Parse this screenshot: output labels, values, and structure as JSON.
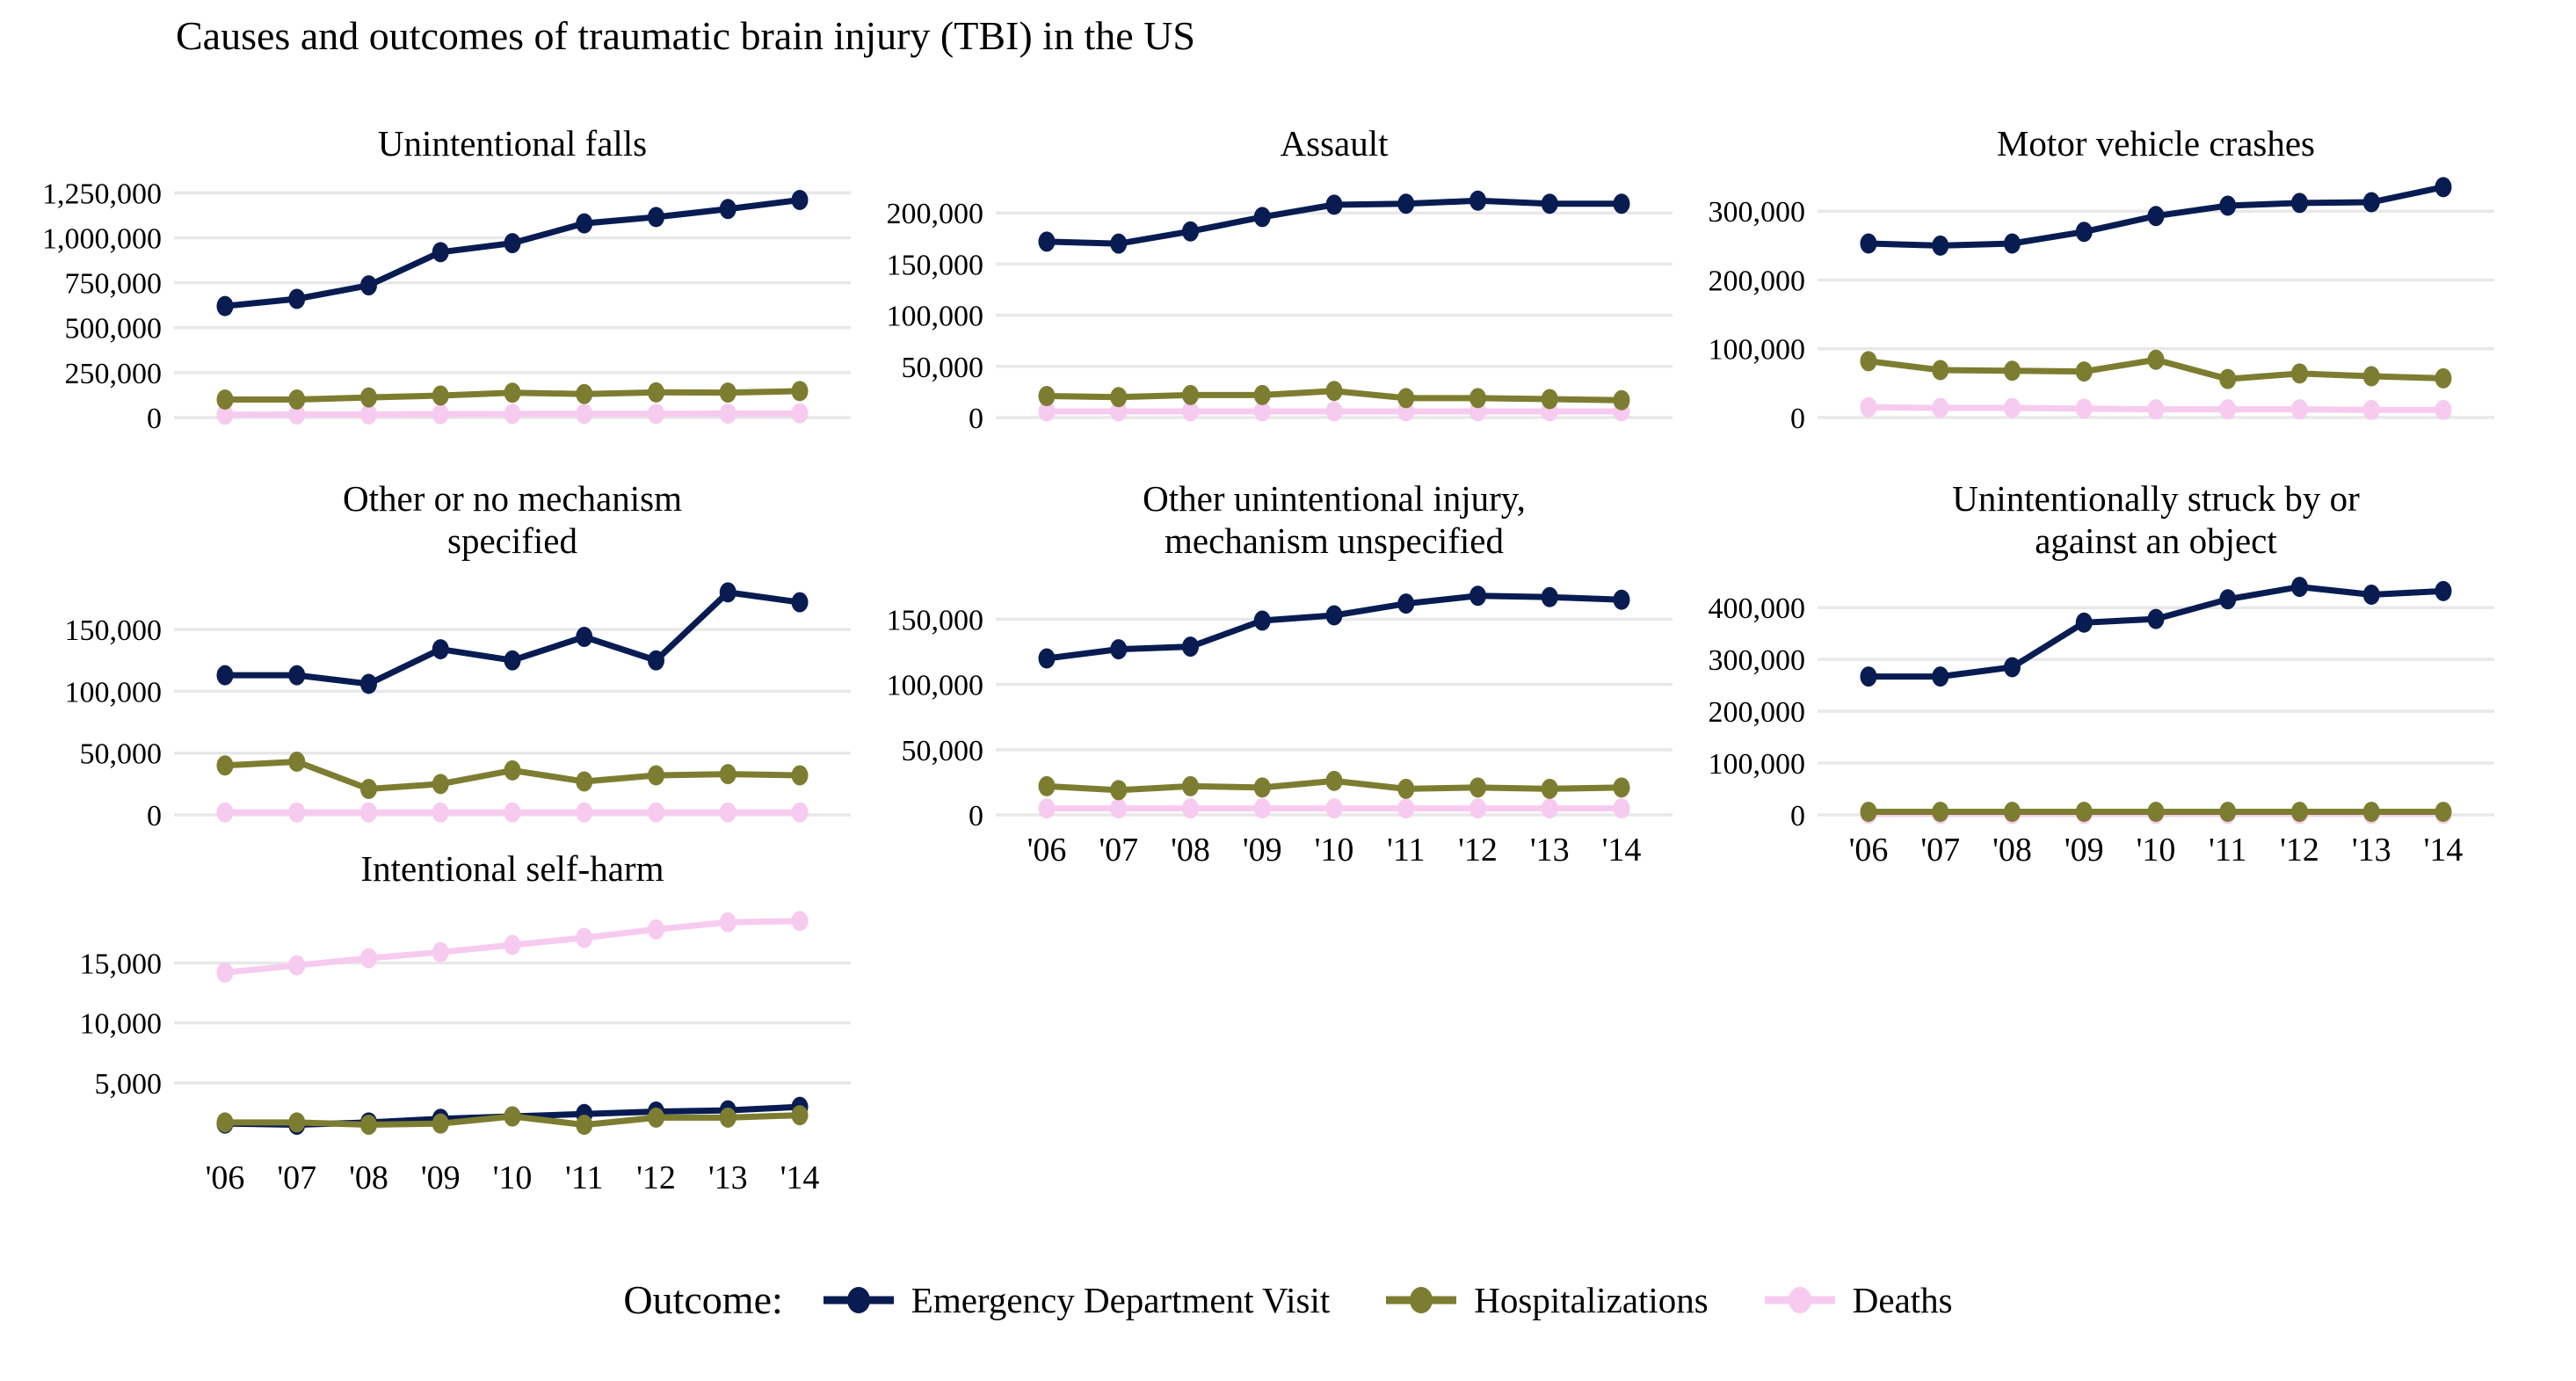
{
  "title": "Causes and outcomes of traumatic brain injury (TBI) in the US",
  "legend": {
    "label": "Outcome:",
    "series": [
      {
        "name": "Emergency Department Visit",
        "color": "#081c52"
      },
      {
        "name": "Hospitalizations",
        "color": "#7d7d31"
      },
      {
        "name": "Deaths",
        "color": "#f7cbf0"
      }
    ]
  },
  "colors": {
    "gridline": "#e8e8e8",
    "background": "#ffffff",
    "text": "#000000"
  },
  "categories": [
    "'06",
    "'07",
    "'08",
    "'09",
    "'10",
    "'11",
    "'12",
    "'13",
    "'14"
  ],
  "chart_data": [
    {
      "type": "line",
      "title": "Unintentional falls",
      "title_lines": [
        "Unintentional falls"
      ],
      "categories": [
        "'06",
        "'07",
        "'08",
        "'09",
        "'10",
        "'11",
        "'12",
        "'13",
        "'14"
      ],
      "ytick_values": [
        0,
        250000,
        500000,
        750000,
        1000000,
        1250000
      ],
      "ytick_labels": [
        "0",
        "250,000",
        "500,000",
        "750,000",
        "1,000,000",
        "1,250,000"
      ],
      "ylim": [
        0,
        1320000
      ],
      "grid": true,
      "show_x_labels": false,
      "series": [
        {
          "name": "Emergency Department Visit",
          "values": [
            620000,
            660000,
            735000,
            920000,
            970000,
            1080000,
            1115000,
            1160000,
            1210000
          ]
        },
        {
          "name": "Hospitalizations",
          "values": [
            100000,
            100000,
            112000,
            122000,
            138000,
            131000,
            140000,
            139000,
            147000
          ]
        },
        {
          "name": "Deaths",
          "values": [
            16000,
            17000,
            18000,
            19000,
            20000,
            21000,
            21000,
            22000,
            23000
          ]
        }
      ]
    },
    {
      "type": "line",
      "title": "Assault",
      "title_lines": [
        "Assault"
      ],
      "categories": [
        "'06",
        "'07",
        "'08",
        "'09",
        "'10",
        "'11",
        "'12",
        "'13",
        "'14"
      ],
      "ytick_values": [
        0,
        50000,
        100000,
        150000,
        200000
      ],
      "ytick_labels": [
        "0",
        "50,000",
        "100,000",
        "150,000",
        "200,000"
      ],
      "ylim": [
        0,
        232000
      ],
      "grid": true,
      "show_x_labels": false,
      "series": [
        {
          "name": "Emergency Department Visit",
          "values": [
            172000,
            170000,
            182000,
            196000,
            208000,
            209000,
            212000,
            209000,
            209000
          ]
        },
        {
          "name": "Hospitalizations",
          "values": [
            21000,
            20000,
            22000,
            22000,
            26000,
            19000,
            19000,
            18000,
            17000
          ]
        },
        {
          "name": "Deaths",
          "values": [
            6000,
            6000,
            6000,
            6000,
            6000,
            6000,
            6000,
            6000,
            6000
          ]
        }
      ]
    },
    {
      "type": "line",
      "title": "Motor vehicle crashes",
      "title_lines": [
        "Motor vehicle crashes"
      ],
      "categories": [
        "'06",
        "'07",
        "'08",
        "'09",
        "'10",
        "'11",
        "'12",
        "'13",
        "'14"
      ],
      "ytick_values": [
        0,
        100000,
        200000,
        300000
      ],
      "ytick_labels": [
        "0",
        "100,000",
        "200,000",
        "300,000"
      ],
      "ylim": [
        0,
        345000
      ],
      "grid": true,
      "show_x_labels": false,
      "series": [
        {
          "name": "Emergency Department Visit",
          "values": [
            253000,
            250000,
            253000,
            270000,
            293000,
            308000,
            312000,
            313000,
            335000
          ]
        },
        {
          "name": "Hospitalizations",
          "values": [
            82000,
            69000,
            68000,
            67000,
            84000,
            56000,
            64000,
            60000,
            57000
          ]
        },
        {
          "name": "Deaths",
          "values": [
            15000,
            14000,
            14000,
            13000,
            12000,
            12000,
            12000,
            11000,
            11000
          ]
        }
      ]
    },
    {
      "type": "line",
      "title": "Other or no mechanism specified",
      "title_lines": [
        "Other or no mechanism",
        "specified"
      ],
      "categories": [
        "'06",
        "'07",
        "'08",
        "'09",
        "'10",
        "'11",
        "'12",
        "'13",
        "'14"
      ],
      "ytick_values": [
        0,
        50000,
        100000,
        150000
      ],
      "ytick_labels": [
        "0",
        "50,000",
        "100,000",
        "150,000"
      ],
      "ylim": [
        0,
        192000
      ],
      "grid": true,
      "show_x_labels": false,
      "series": [
        {
          "name": "Emergency Department Visit",
          "values": [
            113000,
            113000,
            106000,
            134000,
            125000,
            144000,
            125000,
            180000,
            172000
          ]
        },
        {
          "name": "Hospitalizations",
          "values": [
            40000,
            43000,
            21000,
            25000,
            36000,
            27000,
            32000,
            33000,
            32000
          ]
        },
        {
          "name": "Deaths",
          "values": [
            2000,
            2000,
            2000,
            2000,
            2000,
            2000,
            2000,
            2000,
            2000
          ]
        }
      ]
    },
    {
      "type": "line",
      "title": "Other unintentional injury, mechanism unspecified",
      "title_lines": [
        "Other unintentional injury,",
        "mechanism unspecified"
      ],
      "categories": [
        "'06",
        "'07",
        "'08",
        "'09",
        "'10",
        "'11",
        "'12",
        "'13",
        "'14"
      ],
      "ytick_values": [
        0,
        50000,
        100000,
        150000
      ],
      "ytick_labels": [
        "0",
        "50,000",
        "100,000",
        "150,000"
      ],
      "ylim": [
        0,
        182000
      ],
      "grid": true,
      "show_x_labels": true,
      "series": [
        {
          "name": "Emergency Department Visit",
          "values": [
            120000,
            127000,
            129000,
            149000,
            153000,
            162000,
            168000,
            167000,
            165000
          ]
        },
        {
          "name": "Hospitalizations",
          "values": [
            22000,
            19000,
            22000,
            21000,
            26000,
            20000,
            21000,
            20000,
            21000
          ]
        },
        {
          "name": "Deaths",
          "values": [
            5000,
            5000,
            5000,
            5000,
            5000,
            5000,
            5000,
            5000,
            5000
          ]
        }
      ]
    },
    {
      "type": "line",
      "title": "Unintentionally struck by or against an object",
      "title_lines": [
        "Unintentionally struck by or",
        "against an object"
      ],
      "categories": [
        "'06",
        "'07",
        "'08",
        "'09",
        "'10",
        "'11",
        "'12",
        "'13",
        "'14"
      ],
      "ytick_values": [
        0,
        100000,
        200000,
        300000,
        400000
      ],
      "ytick_labels": [
        "0",
        "100,000",
        "200,000",
        "300,000",
        "400,000"
      ],
      "ylim": [
        0,
        458000
      ],
      "grid": true,
      "show_x_labels": true,
      "series": [
        {
          "name": "Emergency Department Visit",
          "values": [
            267000,
            267000,
            285000,
            371000,
            378000,
            416000,
            440000,
            425000,
            432000
          ]
        },
        {
          "name": "Hospitalizations",
          "values": [
            6000,
            6000,
            6000,
            6000,
            6000,
            6000,
            6000,
            6000,
            6000
          ]
        },
        {
          "name": "Deaths",
          "values": [
            2000,
            2000,
            2000,
            2000,
            2000,
            2000,
            2000,
            2000,
            2000
          ]
        }
      ]
    },
    {
      "type": "line",
      "title": "Intentional self-harm",
      "title_lines": [
        "Intentional self-harm"
      ],
      "categories": [
        "'06",
        "'07",
        "'08",
        "'09",
        "'10",
        "'11",
        "'12",
        "'13",
        "'14"
      ],
      "ytick_values": [
        5000,
        10000,
        15000
      ],
      "ytick_labels": [
        "5,000",
        "10,000",
        "15,000"
      ],
      "ylim": [
        0,
        19800
      ],
      "grid": true,
      "show_x_labels": true,
      "series": [
        {
          "name": "Emergency Department Visit",
          "values": [
            1600,
            1500,
            1700,
            2000,
            2200,
            2400,
            2600,
            2700,
            3000
          ]
        },
        {
          "name": "Hospitalizations",
          "values": [
            1700,
            1700,
            1500,
            1600,
            2200,
            1500,
            2100,
            2100,
            2300
          ]
        },
        {
          "name": "Deaths",
          "values": [
            14200,
            14800,
            15400,
            15900,
            16500,
            17100,
            17800,
            18400,
            18500
          ]
        }
      ]
    }
  ]
}
